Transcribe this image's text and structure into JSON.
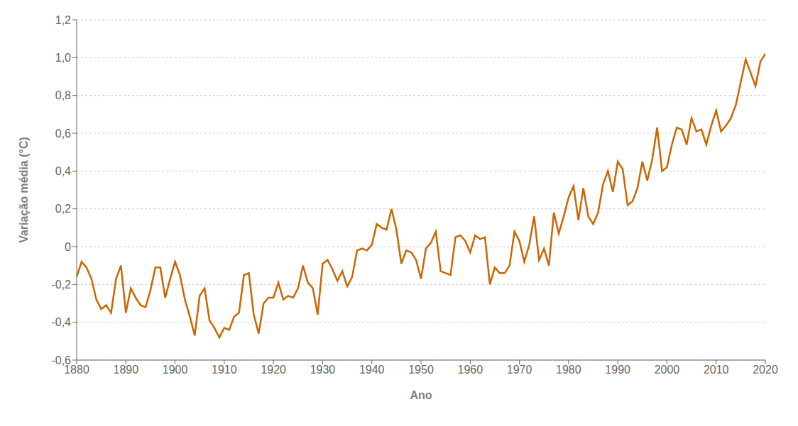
{
  "chart_data": {
    "type": "line",
    "xlabel": "Ano",
    "ylabel": "Variação média (°C)",
    "color": "#CC6600",
    "xlim": [
      1880,
      2020
    ],
    "ylim": [
      -0.6,
      1.2
    ],
    "xticks": [
      1880,
      1890,
      1900,
      1910,
      1920,
      1930,
      1940,
      1950,
      1960,
      1970,
      1980,
      1990,
      2000,
      2010,
      2020
    ],
    "yticks": [
      {
        "value": -0.6,
        "label": "-0,6"
      },
      {
        "value": -0.4,
        "label": "-0,4"
      },
      {
        "value": -0.2,
        "label": "-0,2"
      },
      0,
      {
        "value": 0.2,
        "label": "0,2"
      },
      {
        "value": 0.4,
        "label": "0,4"
      },
      {
        "value": 0.6,
        "label": "0,6"
      },
      {
        "value": 0.8,
        "label": "0,8"
      },
      {
        "value": 1.0,
        "label": "1,0"
      },
      {
        "value": 1.2,
        "label": "1,2"
      }
    ],
    "grid": "y",
    "x": [
      1880,
      1881,
      1882,
      1883,
      1884,
      1885,
      1886,
      1887,
      1888,
      1889,
      1890,
      1891,
      1892,
      1893,
      1894,
      1895,
      1896,
      1897,
      1898,
      1899,
      1900,
      1901,
      1902,
      1903,
      1904,
      1905,
      1906,
      1907,
      1908,
      1909,
      1910,
      1911,
      1912,
      1913,
      1914,
      1915,
      1916,
      1917,
      1918,
      1919,
      1920,
      1921,
      1922,
      1923,
      1924,
      1925,
      1926,
      1927,
      1928,
      1929,
      1930,
      1931,
      1932,
      1933,
      1934,
      1935,
      1936,
      1937,
      1938,
      1939,
      1940,
      1941,
      1942,
      1943,
      1944,
      1945,
      1946,
      1947,
      1948,
      1949,
      1950,
      1951,
      1952,
      1953,
      1954,
      1955,
      1956,
      1957,
      1958,
      1959,
      1960,
      1961,
      1962,
      1963,
      1964,
      1965,
      1966,
      1967,
      1968,
      1969,
      1970,
      1971,
      1972,
      1973,
      1974,
      1975,
      1976,
      1977,
      1978,
      1979,
      1980,
      1981,
      1982,
      1983,
      1984,
      1985,
      1986,
      1987,
      1988,
      1989,
      1990,
      1991,
      1992,
      1993,
      1994,
      1995,
      1996,
      1997,
      1998,
      1999,
      2000,
      2001,
      2002,
      2003,
      2004,
      2005,
      2006,
      2007,
      2008,
      2009,
      2010,
      2011,
      2012,
      2013,
      2014,
      2015,
      2016,
      2017,
      2018,
      2019,
      2020
    ],
    "values": [
      -0.16,
      -0.08,
      -0.11,
      -0.17,
      -0.28,
      -0.33,
      -0.31,
      -0.35,
      -0.17,
      -0.1,
      -0.35,
      -0.22,
      -0.27,
      -0.31,
      -0.32,
      -0.23,
      -0.11,
      -0.11,
      -0.27,
      -0.17,
      -0.08,
      -0.15,
      -0.28,
      -0.37,
      -0.47,
      -0.26,
      -0.22,
      -0.39,
      -0.43,
      -0.48,
      -0.43,
      -0.44,
      -0.37,
      -0.35,
      -0.15,
      -0.14,
      -0.36,
      -0.46,
      -0.3,
      -0.27,
      -0.27,
      -0.19,
      -0.28,
      -0.26,
      -0.27,
      -0.22,
      -0.1,
      -0.19,
      -0.22,
      -0.36,
      -0.09,
      -0.07,
      -0.12,
      -0.18,
      -0.13,
      -0.21,
      -0.16,
      -0.02,
      -0.01,
      -0.02,
      0.01,
      0.12,
      0.1,
      0.09,
      0.2,
      0.09,
      -0.09,
      -0.02,
      -0.03,
      -0.07,
      -0.17,
      -0.01,
      0.02,
      0.08,
      -0.13,
      -0.14,
      -0.15,
      0.05,
      0.06,
      0.03,
      -0.03,
      0.06,
      0.04,
      0.05,
      -0.2,
      -0.11,
      -0.14,
      -0.14,
      -0.1,
      0.08,
      0.03,
      -0.08,
      0.01,
      0.16,
      -0.07,
      -0.01,
      -0.1,
      0.18,
      0.07,
      0.16,
      0.26,
      0.32,
      0.14,
      0.31,
      0.16,
      0.12,
      0.18,
      0.33,
      0.4,
      0.29,
      0.45,
      0.41,
      0.22,
      0.24,
      0.31,
      0.45,
      0.35,
      0.46,
      0.63,
      0.4,
      0.42,
      0.54,
      0.63,
      0.62,
      0.54,
      0.68,
      0.61,
      0.62,
      0.54,
      0.64,
      0.72,
      0.61,
      0.64,
      0.68,
      0.75,
      0.87,
      0.99,
      0.92,
      0.85,
      0.98,
      1.02
    ]
  }
}
